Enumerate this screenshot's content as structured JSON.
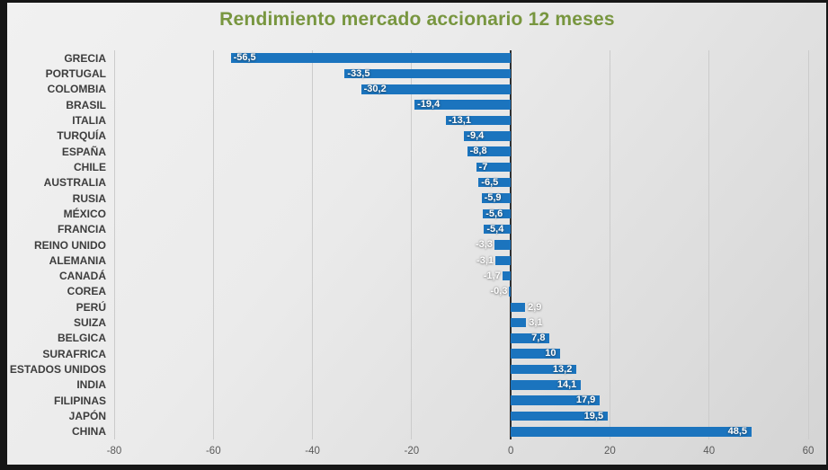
{
  "chart_data": {
    "type": "bar",
    "orientation": "horizontal",
    "title": "Rendimiento mercado accionario 12 meses",
    "categories": [
      "GRECIA",
      "PORTUGAL",
      "COLOMBIA",
      "BRASIL",
      "ITALIA",
      "TURQUÍA",
      "ESPAÑA",
      "CHILE",
      "AUSTRALIA",
      "RUSIA",
      "MÉXICO",
      "FRANCIA",
      "REINO UNIDO",
      "ALEMANIA",
      "CANADÁ",
      "COREA",
      "PERÚ",
      "SUIZA",
      "BELGICA",
      "SURAFRICA",
      "ESTADOS UNIDOS",
      "INDIA",
      "FILIPINAS",
      "JAPÓN",
      "CHINA"
    ],
    "values": [
      -56.5,
      -33.5,
      -30.2,
      -19.4,
      -13.1,
      -9.4,
      -8.8,
      -7,
      -6.5,
      -5.9,
      -5.6,
      -5.4,
      -3.3,
      -3.1,
      -1.7,
      -0.3,
      2.9,
      3.1,
      7.8,
      10,
      13.2,
      14.1,
      17.9,
      19.5,
      48.5
    ],
    "value_labels": [
      "-56,5",
      "-33,5",
      "-30,2",
      "-19,4",
      "-13,1",
      "-9,4",
      "-8,8",
      "-7",
      "-6,5",
      "-5,9",
      "-5,6",
      "-5,4",
      "-3,3",
      "-3,1",
      "-1,7",
      "-0,3",
      "2,9",
      "3,1",
      "7,8",
      "10",
      "13,2",
      "14,1",
      "17,9",
      "19,5",
      "48,5"
    ],
    "xlim": [
      -80,
      60
    ],
    "xticks": [
      -80,
      -60,
      -40,
      -20,
      0,
      20,
      40,
      60
    ],
    "xtick_labels": [
      "-80",
      "-60",
      "-40",
      "-20",
      "0",
      "20",
      "40",
      "60"
    ],
    "grid": true,
    "legend": "none",
    "xlabel": "",
    "ylabel": "",
    "bar_color": "#1b74be",
    "title_color": "#78963f"
  }
}
